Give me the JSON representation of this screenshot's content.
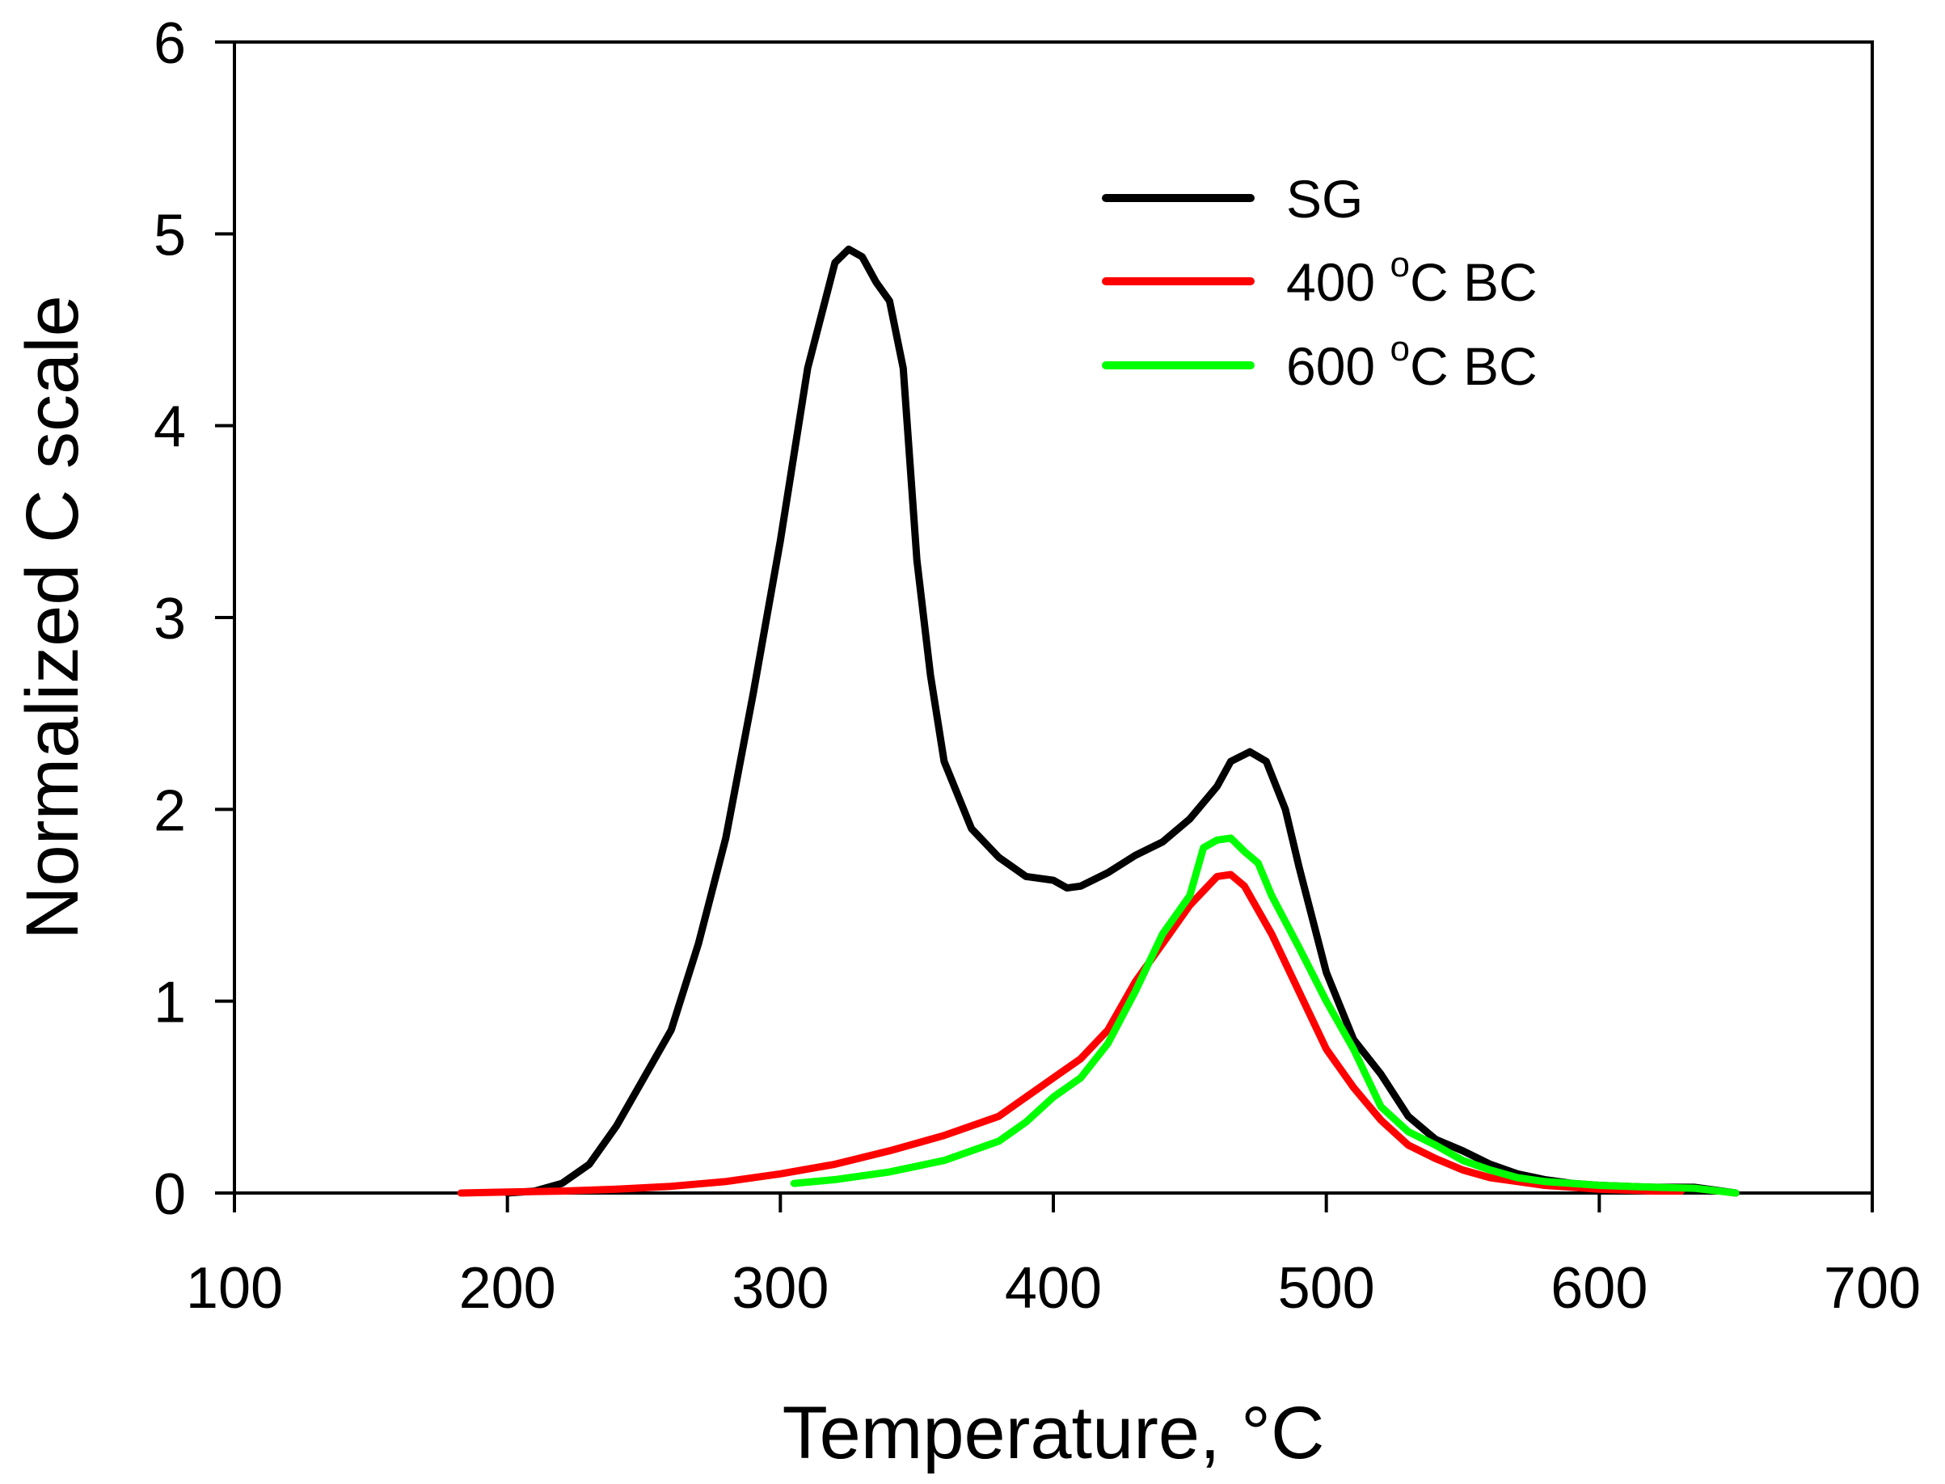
{
  "chart_data": {
    "type": "line",
    "title": "",
    "xlabel": "Temperature, °C",
    "xlabel_main": "Temperature, ",
    "xlabel_sup": "o",
    "xlabel_unit": "C",
    "ylabel": "Normalized C scale",
    "xlim": [
      100,
      700
    ],
    "ylim": [
      0,
      6
    ],
    "xticks": [
      100,
      200,
      300,
      400,
      500,
      600,
      700
    ],
    "yticks": [
      0,
      1,
      2,
      3,
      4,
      5,
      6
    ],
    "grid": false,
    "legend_position": "top-right",
    "series": [
      {
        "name": "SG",
        "label_main": "SG",
        "label_sup": "",
        "label_tail": "",
        "color": "#000000",
        "x": [
          200,
          210,
          220,
          230,
          240,
          250,
          260,
          270,
          280,
          290,
          300,
          310,
          320,
          325,
          330,
          335,
          340,
          345,
          350,
          355,
          360,
          370,
          380,
          390,
          400,
          405,
          410,
          420,
          430,
          440,
          450,
          460,
          465,
          472,
          478,
          485,
          490,
          500,
          510,
          520,
          530,
          540,
          550,
          560,
          570,
          580,
          590,
          600,
          620,
          635,
          650
        ],
        "y": [
          0,
          0.01,
          0.05,
          0.15,
          0.35,
          0.6,
          0.85,
          1.3,
          1.85,
          2.6,
          3.4,
          4.3,
          4.85,
          4.92,
          4.88,
          4.75,
          4.65,
          4.3,
          3.3,
          2.7,
          2.25,
          1.9,
          1.75,
          1.65,
          1.63,
          1.59,
          1.6,
          1.67,
          1.76,
          1.83,
          1.95,
          2.12,
          2.25,
          2.3,
          2.25,
          2.0,
          1.7,
          1.15,
          0.8,
          0.62,
          0.4,
          0.28,
          0.22,
          0.15,
          0.1,
          0.07,
          0.05,
          0.04,
          0.03,
          0.03,
          0
        ]
      },
      {
        "name": "400 °C BC",
        "label_main": "400 ",
        "label_sup": "o",
        "label_tail": "C BC",
        "color": "#ff0000",
        "x": [
          183,
          200,
          220,
          240,
          260,
          280,
          300,
          320,
          340,
          360,
          380,
          390,
          400,
          410,
          420,
          430,
          440,
          450,
          460,
          465,
          470,
          480,
          490,
          500,
          510,
          520,
          530,
          540,
          550,
          560,
          580,
          600,
          620,
          630
        ],
        "y": [
          0,
          0.005,
          0.01,
          0.02,
          0.035,
          0.06,
          0.1,
          0.15,
          0.22,
          0.3,
          0.4,
          0.5,
          0.6,
          0.7,
          0.85,
          1.1,
          1.3,
          1.5,
          1.65,
          1.66,
          1.6,
          1.35,
          1.05,
          0.75,
          0.55,
          0.38,
          0.25,
          0.18,
          0.12,
          0.08,
          0.04,
          0.02,
          0.01,
          0.01
        ]
      },
      {
        "name": "600 °C BC",
        "label_main": "600 ",
        "label_sup": "o",
        "label_tail": "C BC",
        "color": "#00ff00",
        "x": [
          305,
          320,
          340,
          360,
          380,
          390,
          400,
          410,
          420,
          430,
          440,
          450,
          455,
          460,
          465,
          470,
          475,
          480,
          490,
          500,
          510,
          520,
          530,
          540,
          550,
          560,
          570,
          580,
          600,
          620,
          635,
          650
        ],
        "y": [
          0.05,
          0.07,
          0.11,
          0.17,
          0.27,
          0.37,
          0.5,
          0.6,
          0.78,
          1.05,
          1.35,
          1.55,
          1.8,
          1.84,
          1.85,
          1.78,
          1.72,
          1.55,
          1.28,
          1.0,
          0.75,
          0.45,
          0.32,
          0.25,
          0.17,
          0.12,
          0.08,
          0.06,
          0.04,
          0.03,
          0.025,
          0
        ]
      }
    ]
  }
}
